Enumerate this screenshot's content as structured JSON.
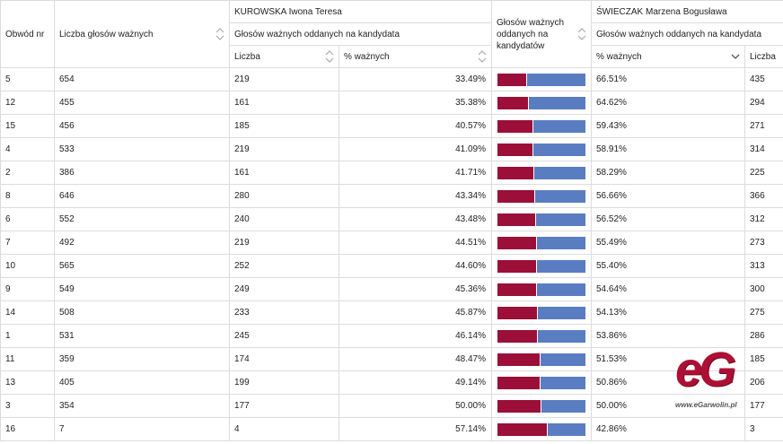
{
  "headers": {
    "obwod": "Obwód nr",
    "liczba_glosow": "Liczba głosów ważnych",
    "cand1_name": "KUROWSKA Iwona Teresa",
    "cand1_sub": "Głosów ważnych oddanych na kandydata",
    "cand1_liczba": "Liczba",
    "cand1_pct": "% ważnych",
    "bar_header": "Głosów ważnych oddanych na kandydatów",
    "cand2_name": "ŚWIECZAK Marzena Bogusława",
    "cand2_sub": "Głosów ważnych oddanych na kandydata",
    "cand2_pct": "% ważnych",
    "cand2_liczba": "Liczba"
  },
  "colors": {
    "cand1": "#9b0f38",
    "cand2": "#5a7dc2"
  },
  "rows": [
    {
      "obwod": "5",
      "liczba": "654",
      "c1_liczba": "219",
      "c1_pct": "33.49%",
      "c1_frac": 0.3349,
      "c2_pct": "66.51%",
      "c2_liczba": "435"
    },
    {
      "obwod": "12",
      "liczba": "455",
      "c1_liczba": "161",
      "c1_pct": "35.38%",
      "c1_frac": 0.3538,
      "c2_pct": "64.62%",
      "c2_liczba": "294"
    },
    {
      "obwod": "15",
      "liczba": "456",
      "c1_liczba": "185",
      "c1_pct": "40.57%",
      "c1_frac": 0.4057,
      "c2_pct": "59.43%",
      "c2_liczba": "271"
    },
    {
      "obwod": "4",
      "liczba": "533",
      "c1_liczba": "219",
      "c1_pct": "41.09%",
      "c1_frac": 0.4109,
      "c2_pct": "58.91%",
      "c2_liczba": "314"
    },
    {
      "obwod": "2",
      "liczba": "386",
      "c1_liczba": "161",
      "c1_pct": "41.71%",
      "c1_frac": 0.4171,
      "c2_pct": "58.29%",
      "c2_liczba": "225"
    },
    {
      "obwod": "8",
      "liczba": "646",
      "c1_liczba": "280",
      "c1_pct": "43.34%",
      "c1_frac": 0.4334,
      "c2_pct": "56.66%",
      "c2_liczba": "366"
    },
    {
      "obwod": "6",
      "liczba": "552",
      "c1_liczba": "240",
      "c1_pct": "43.48%",
      "c1_frac": 0.4348,
      "c2_pct": "56.52%",
      "c2_liczba": "312"
    },
    {
      "obwod": "7",
      "liczba": "492",
      "c1_liczba": "219",
      "c1_pct": "44.51%",
      "c1_frac": 0.4451,
      "c2_pct": "55.49%",
      "c2_liczba": "273"
    },
    {
      "obwod": "10",
      "liczba": "565",
      "c1_liczba": "252",
      "c1_pct": "44.60%",
      "c1_frac": 0.446,
      "c2_pct": "55.40%",
      "c2_liczba": "313"
    },
    {
      "obwod": "9",
      "liczba": "549",
      "c1_liczba": "249",
      "c1_pct": "45.36%",
      "c1_frac": 0.4536,
      "c2_pct": "54.64%",
      "c2_liczba": "300"
    },
    {
      "obwod": "14",
      "liczba": "508",
      "c1_liczba": "233",
      "c1_pct": "45.87%",
      "c1_frac": 0.4587,
      "c2_pct": "54.13%",
      "c2_liczba": "275"
    },
    {
      "obwod": "1",
      "liczba": "531",
      "c1_liczba": "245",
      "c1_pct": "46.14%",
      "c1_frac": 0.4614,
      "c2_pct": "53.86%",
      "c2_liczba": "286"
    },
    {
      "obwod": "11",
      "liczba": "359",
      "c1_liczba": "174",
      "c1_pct": "48.47%",
      "c1_frac": 0.4847,
      "c2_pct": "51.53%",
      "c2_liczba": "185"
    },
    {
      "obwod": "13",
      "liczba": "405",
      "c1_liczba": "199",
      "c1_pct": "49.14%",
      "c1_frac": 0.4914,
      "c2_pct": "50.86%",
      "c2_liczba": "206"
    },
    {
      "obwod": "3",
      "liczba": "354",
      "c1_liczba": "177",
      "c1_pct": "50.00%",
      "c1_frac": 0.5,
      "c2_pct": "50.00%",
      "c2_liczba": "177"
    },
    {
      "obwod": "16",
      "liczba": "7",
      "c1_liczba": "4",
      "c1_pct": "57.14%",
      "c1_frac": 0.5714,
      "c2_pct": "42.86%",
      "c2_liczba": "3"
    }
  ],
  "watermark": {
    "logo": "eG",
    "url": "www.eGarwolin.pl"
  }
}
